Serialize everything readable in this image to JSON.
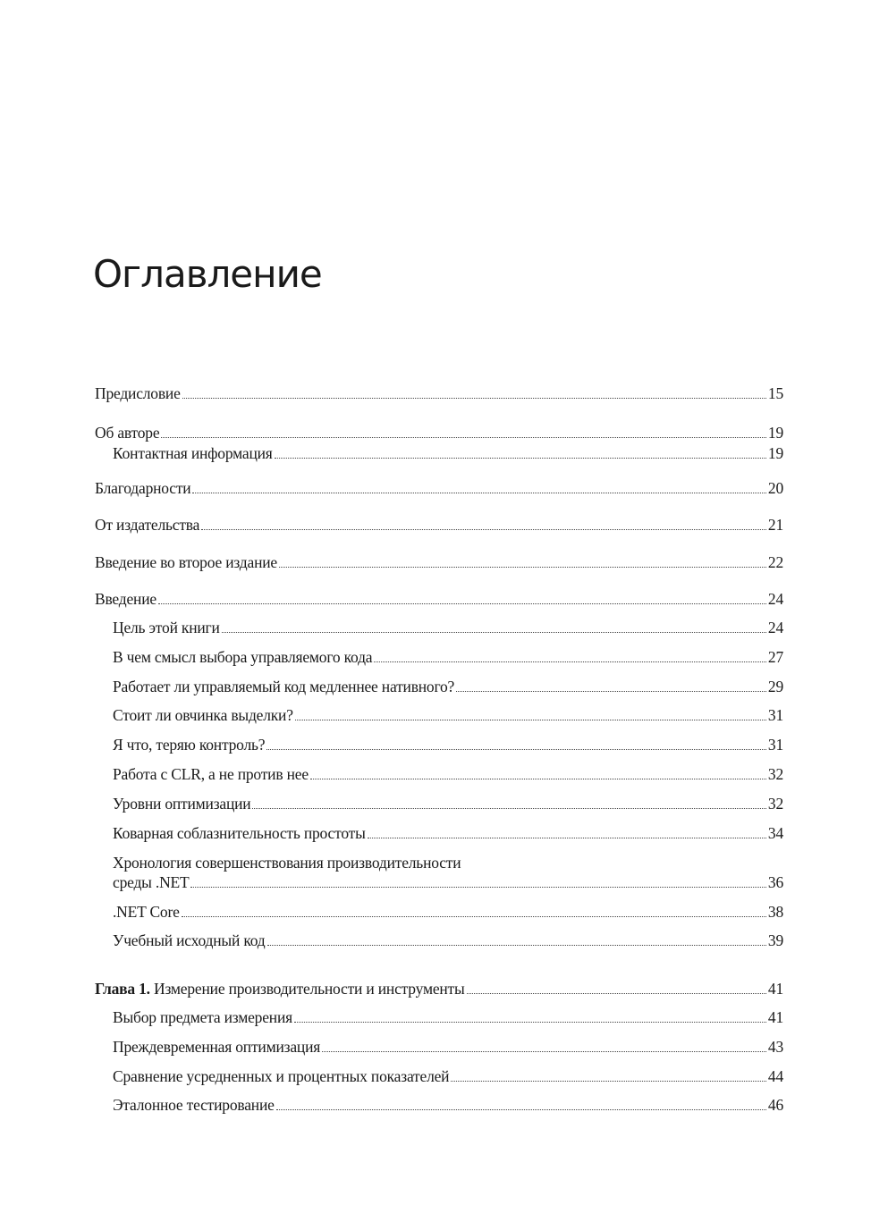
{
  "title": "Оглавление",
  "entries": [
    {
      "level": 0,
      "label": "Предисловие",
      "page": "15"
    },
    {
      "level": 0,
      "label": "Об авторе",
      "page": "19"
    },
    {
      "level": 1,
      "label": "Контактная информация",
      "page": "19"
    },
    {
      "level": 0,
      "label": "Благодарности",
      "page": "20"
    },
    {
      "level": 0,
      "label": "От издательства",
      "page": "21"
    },
    {
      "level": 0,
      "label": "Введение во второе издание",
      "page": "22"
    },
    {
      "level": 0,
      "label": "Введение",
      "page": "24"
    },
    {
      "level": 1,
      "label": "Цель этой книги",
      "page": "24"
    },
    {
      "level": 1,
      "label": "В чем смысл выбора управляемого кода",
      "page": "27"
    },
    {
      "level": 1,
      "label": "Работает ли управляемый код медленнее нативного?",
      "page": "29"
    },
    {
      "level": 1,
      "label": "Стоит ли овчинка выделки?",
      "page": "31"
    },
    {
      "level": 1,
      "label": "Я что, теряю контроль?",
      "page": "31"
    },
    {
      "level": 1,
      "label": "Работа с CLR, а не против нее",
      "page": "32"
    },
    {
      "level": 1,
      "label": "Уровни оптимизации",
      "page": "32"
    },
    {
      "level": 1,
      "label": "Коварная соблазнительность простоты",
      "page": "34"
    },
    {
      "level": 1,
      "label": "Хронология совершенствования производительности",
      "label2": "среды .NET",
      "page": "36"
    },
    {
      "level": 1,
      "label": ".NET Core",
      "page": "38"
    },
    {
      "level": 1,
      "label": "Учебный исходный код",
      "page": "39"
    },
    {
      "level": 0,
      "prefix": "Глава 1.",
      "label": "Измерение производительности и инструменты",
      "page": "41"
    },
    {
      "level": 1,
      "label": "Выбор предмета измерения",
      "page": "41"
    },
    {
      "level": 1,
      "label": "Преждевременная оптимизация",
      "page": "43"
    },
    {
      "level": 1,
      "label": "Сравнение усредненных и процентных показателей",
      "page": "44"
    },
    {
      "level": 1,
      "label": "Эталонное тестирование",
      "page": "46"
    }
  ]
}
